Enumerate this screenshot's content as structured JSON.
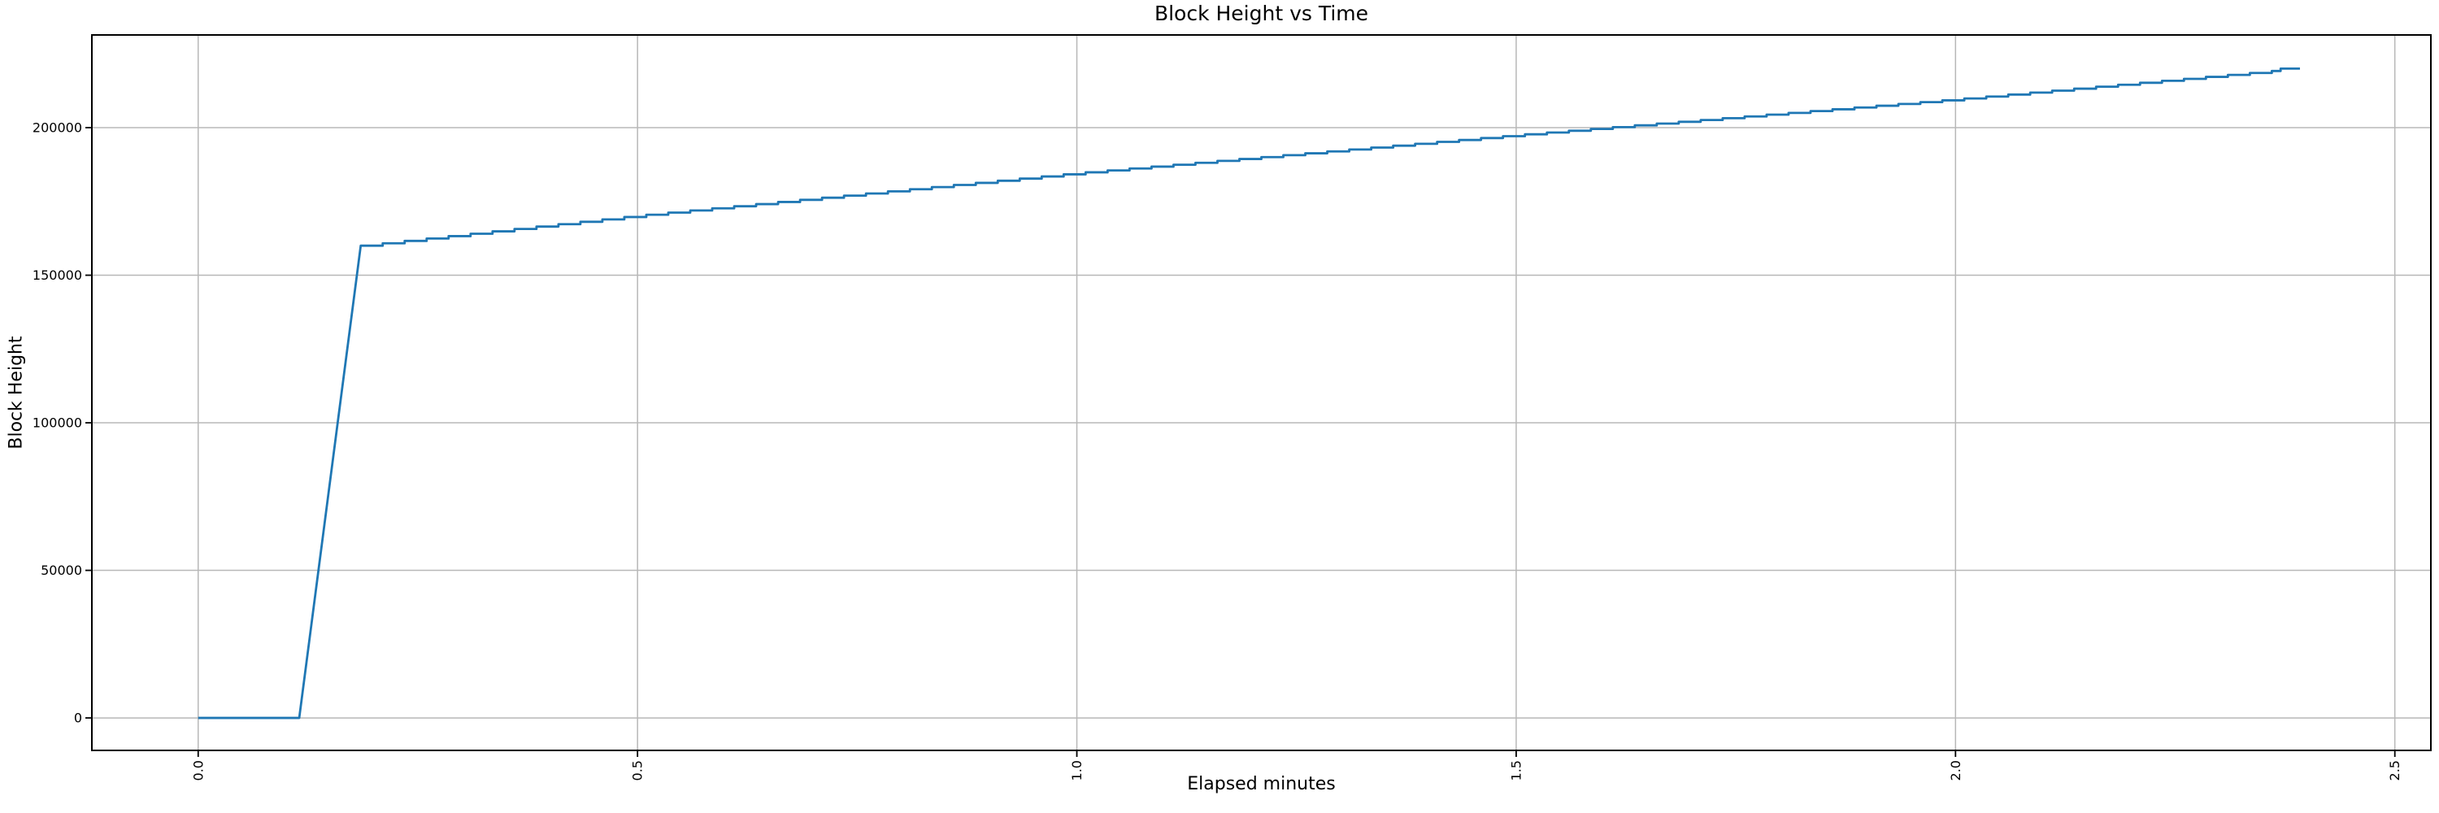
{
  "chart_data": {
    "type": "line",
    "title": "Block Height vs Time",
    "xlabel": "Elapsed minutes",
    "ylabel": "Block Height",
    "xlim": [
      -0.121,
      2.541
    ],
    "ylim": [
      -11000,
      231400
    ],
    "x_ticks": [
      0.0,
      0.5,
      1.0,
      1.5,
      2.0,
      2.5
    ],
    "x_tick_labels": [
      "0.0",
      "0.5",
      "1.0",
      "1.5",
      "2.0",
      "2.5"
    ],
    "x_tick_rotation": 90,
    "y_ticks": [
      0,
      50000,
      100000,
      150000,
      200000
    ],
    "y_tick_labels": [
      "0",
      "50000",
      "100000",
      "150000",
      "200000"
    ],
    "grid": true,
    "legend": false,
    "colors": {
      "line": "#1f77b4",
      "grid": "#b8b8b8",
      "spine": "#000000",
      "text": "#000000",
      "background": "#ffffff"
    },
    "series": [
      {
        "name": "Block Height",
        "color": "#1f77b4",
        "line_width": 2.8,
        "step_from_x": 0.2,
        "points": [
          [
            0,
            0
          ],
          [
            0.115,
            0
          ],
          [
            0.185,
            160000
          ],
          [
            0.21,
            160810
          ],
          [
            0.235,
            161620
          ],
          [
            0.26,
            162430
          ],
          [
            0.285,
            163240
          ],
          [
            0.31,
            164050
          ],
          [
            0.335,
            164860
          ],
          [
            0.36,
            165670
          ],
          [
            0.385,
            166480
          ],
          [
            0.41,
            167290
          ],
          [
            0.435,
            168100
          ],
          [
            0.46,
            168900
          ],
          [
            0.485,
            169710
          ],
          [
            0.51,
            170490
          ],
          [
            0.535,
            171210
          ],
          [
            0.56,
            171930
          ],
          [
            0.585,
            172650
          ],
          [
            0.61,
            173370
          ],
          [
            0.635,
            174090
          ],
          [
            0.66,
            174810
          ],
          [
            0.685,
            175530
          ],
          [
            0.71,
            176250
          ],
          [
            0.735,
            176970
          ],
          [
            0.76,
            177690
          ],
          [
            0.785,
            178410
          ],
          [
            0.81,
            179130
          ],
          [
            0.835,
            179850
          ],
          [
            0.86,
            180570
          ],
          [
            0.885,
            181290
          ],
          [
            0.91,
            182010
          ],
          [
            0.935,
            182730
          ],
          [
            0.96,
            183450
          ],
          [
            0.985,
            184170
          ],
          [
            1.01,
            184860
          ],
          [
            1.035,
            185500
          ],
          [
            1.06,
            186150
          ],
          [
            1.085,
            186790
          ],
          [
            1.11,
            187440
          ],
          [
            1.135,
            188080
          ],
          [
            1.16,
            188730
          ],
          [
            1.185,
            189370
          ],
          [
            1.21,
            190020
          ],
          [
            1.235,
            190660
          ],
          [
            1.26,
            191310
          ],
          [
            1.285,
            191950
          ],
          [
            1.31,
            192600
          ],
          [
            1.335,
            193240
          ],
          [
            1.36,
            193890
          ],
          [
            1.385,
            194530
          ],
          [
            1.41,
            195180
          ],
          [
            1.435,
            195820
          ],
          [
            1.46,
            196470
          ],
          [
            1.485,
            197110
          ],
          [
            1.51,
            197740
          ],
          [
            1.535,
            198350
          ],
          [
            1.56,
            198950
          ],
          [
            1.585,
            199560
          ],
          [
            1.61,
            200160
          ],
          [
            1.635,
            200770
          ],
          [
            1.66,
            201370
          ],
          [
            1.685,
            201980
          ],
          [
            1.71,
            202580
          ],
          [
            1.735,
            203190
          ],
          [
            1.76,
            203790
          ],
          [
            1.785,
            204400
          ],
          [
            1.81,
            205000
          ],
          [
            1.835,
            205610
          ],
          [
            1.86,
            206210
          ],
          [
            1.885,
            206820
          ],
          [
            1.91,
            207420
          ],
          [
            1.935,
            208030
          ],
          [
            1.96,
            208630
          ],
          [
            1.985,
            209240
          ],
          [
            2.01,
            209870
          ],
          [
            2.035,
            210530
          ],
          [
            2.06,
            211200
          ],
          [
            2.085,
            211870
          ],
          [
            2.11,
            212530
          ],
          [
            2.135,
            213200
          ],
          [
            2.16,
            213870
          ],
          [
            2.185,
            214530
          ],
          [
            2.21,
            215200
          ],
          [
            2.235,
            215870
          ],
          [
            2.26,
            216530
          ],
          [
            2.285,
            217200
          ],
          [
            2.31,
            217870
          ],
          [
            2.335,
            218530
          ],
          [
            2.36,
            219200
          ],
          [
            2.37,
            220000
          ],
          [
            2.392,
            220000
          ]
        ]
      }
    ]
  }
}
